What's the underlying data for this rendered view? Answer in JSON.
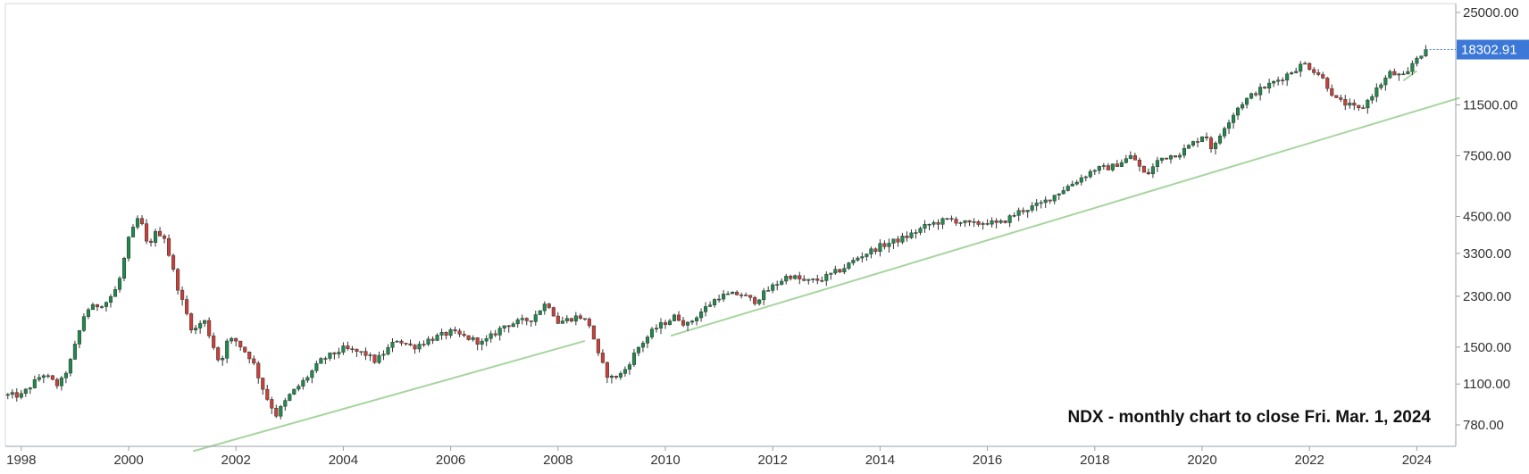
{
  "chart_data": {
    "type": "candlestick",
    "symbol": "NDX",
    "annotation": "NDX - monthly chart to close Fri. Mar. 1, 2024",
    "last_price_label": "18302.91",
    "last_price": 18302.91,
    "y_scale": "log",
    "ylim": [
      600,
      27000
    ],
    "xlim": [
      1997.72,
      2024.8
    ],
    "y_ticks": [
      {
        "value": 25000,
        "label": "25000.00"
      },
      {
        "value": 11500,
        "label": "11500.00"
      },
      {
        "value": 7500,
        "label": "7500.00"
      },
      {
        "value": 4500,
        "label": "4500.00"
      },
      {
        "value": 3300,
        "label": "3300.00"
      },
      {
        "value": 2300,
        "label": "2300.00"
      },
      {
        "value": 1500,
        "label": "1500.00"
      },
      {
        "value": 1100,
        "label": "1100.00"
      },
      {
        "value": 780,
        "label": "780.00"
      }
    ],
    "x_ticks": [
      {
        "value": 1998,
        "label": "1998"
      },
      {
        "value": 2000,
        "label": "2000"
      },
      {
        "value": 2002,
        "label": "2002"
      },
      {
        "value": 2004,
        "label": "2004"
      },
      {
        "value": 2006,
        "label": "2006"
      },
      {
        "value": 2008,
        "label": "2008"
      },
      {
        "value": 2010,
        "label": "2010"
      },
      {
        "value": 2012,
        "label": "2012"
      },
      {
        "value": 2014,
        "label": "2014"
      },
      {
        "value": 2016,
        "label": "2016"
      },
      {
        "value": 2018,
        "label": "2018"
      },
      {
        "value": 2020,
        "label": "2020"
      },
      {
        "value": 2022,
        "label": "2022"
      },
      {
        "value": 2024,
        "label": "2024"
      }
    ],
    "anchors": [
      [
        1997.75,
        1000
      ],
      [
        1998.0,
        1000
      ],
      [
        1998.4,
        1200
      ],
      [
        1998.7,
        1080
      ],
      [
        1998.9,
        1300
      ],
      [
        1999.2,
        2050
      ],
      [
        1999.6,
        2200
      ],
      [
        1999.8,
        2500
      ],
      [
        2000.0,
        3700
      ],
      [
        2000.2,
        4550
      ],
      [
        2000.35,
        3500
      ],
      [
        2000.5,
        3900
      ],
      [
        2000.65,
        3900
      ],
      [
        2000.8,
        3000
      ],
      [
        2000.95,
        2350
      ],
      [
        2001.2,
        1700
      ],
      [
        2001.4,
        1900
      ],
      [
        2001.7,
        1300
      ],
      [
        2001.85,
        1600
      ],
      [
        2002.0,
        1580
      ],
      [
        2002.3,
        1350
      ],
      [
        2002.55,
        1000
      ],
      [
        2002.75,
        850
      ],
      [
        2003.0,
        1000
      ],
      [
        2003.3,
        1150
      ],
      [
        2003.6,
        1350
      ],
      [
        2004.0,
        1480
      ],
      [
        2004.4,
        1420
      ],
      [
        2004.6,
        1330
      ],
      [
        2005.0,
        1600
      ],
      [
        2005.3,
        1500
      ],
      [
        2005.6,
        1600
      ],
      [
        2006.0,
        1700
      ],
      [
        2006.4,
        1600
      ],
      [
        2006.6,
        1550
      ],
      [
        2007.0,
        1800
      ],
      [
        2007.5,
        1900
      ],
      [
        2007.8,
        2200
      ],
      [
        2008.0,
        1850
      ],
      [
        2008.4,
        1950
      ],
      [
        2008.6,
        1800
      ],
      [
        2008.75,
        1400
      ],
      [
        2008.95,
        1150
      ],
      [
        2009.2,
        1200
      ],
      [
        2009.5,
        1500
      ],
      [
        2009.8,
        1750
      ],
      [
        2010.2,
        1950
      ],
      [
        2010.4,
        1800
      ],
      [
        2010.7,
        2050
      ],
      [
        2011.0,
        2300
      ],
      [
        2011.4,
        2350
      ],
      [
        2011.65,
        2200
      ],
      [
        2012.0,
        2500
      ],
      [
        2012.3,
        2750
      ],
      [
        2012.6,
        2600
      ],
      [
        2012.9,
        2650
      ],
      [
        2013.3,
        2900
      ],
      [
        2013.6,
        3200
      ],
      [
        2014.0,
        3500
      ],
      [
        2014.5,
        3800
      ],
      [
        2014.9,
        4200
      ],
      [
        2015.3,
        4400
      ],
      [
        2015.7,
        4200
      ],
      [
        2016.0,
        4300
      ],
      [
        2016.2,
        4200
      ],
      [
        2016.6,
        4700
      ],
      [
        2017.0,
        5000
      ],
      [
        2017.5,
        5800
      ],
      [
        2018.0,
        6700
      ],
      [
        2018.3,
        6800
      ],
      [
        2018.7,
        7500
      ],
      [
        2018.95,
        6300
      ],
      [
        2019.2,
        7300
      ],
      [
        2019.6,
        7700
      ],
      [
        2019.95,
        8700
      ],
      [
        2020.05,
        9100
      ],
      [
        2020.2,
        7800
      ],
      [
        2020.4,
        9500
      ],
      [
        2020.7,
        11500
      ],
      [
        2021.0,
        12800
      ],
      [
        2021.5,
        14500
      ],
      [
        2021.9,
        16300
      ],
      [
        2022.2,
        14800
      ],
      [
        2022.5,
        12000
      ],
      [
        2022.8,
        11300
      ],
      [
        2022.95,
        11000
      ],
      [
        2023.2,
        12800
      ],
      [
        2023.5,
        15000
      ],
      [
        2023.8,
        14500
      ],
      [
        2023.95,
        16800
      ],
      [
        2024.17,
        18302.91
      ]
    ],
    "trendlines": [
      {
        "from": [
          2001.2,
          625
        ],
        "to": [
          2008.5,
          1580
        ]
      },
      {
        "from": [
          2010.1,
          1650
        ],
        "to": [
          2024.8,
          12200
        ]
      },
      {
        "from": [
          2023.75,
          14100
        ],
        "to": [
          2024.0,
          15300
        ]
      }
    ],
    "colors": {
      "up_candle": "#1f8a4c",
      "down_candle": "#c9413a",
      "trendline": "#a8d5a0",
      "price_badge": "#3c78d8",
      "axis": "#9aa0a6"
    }
  }
}
